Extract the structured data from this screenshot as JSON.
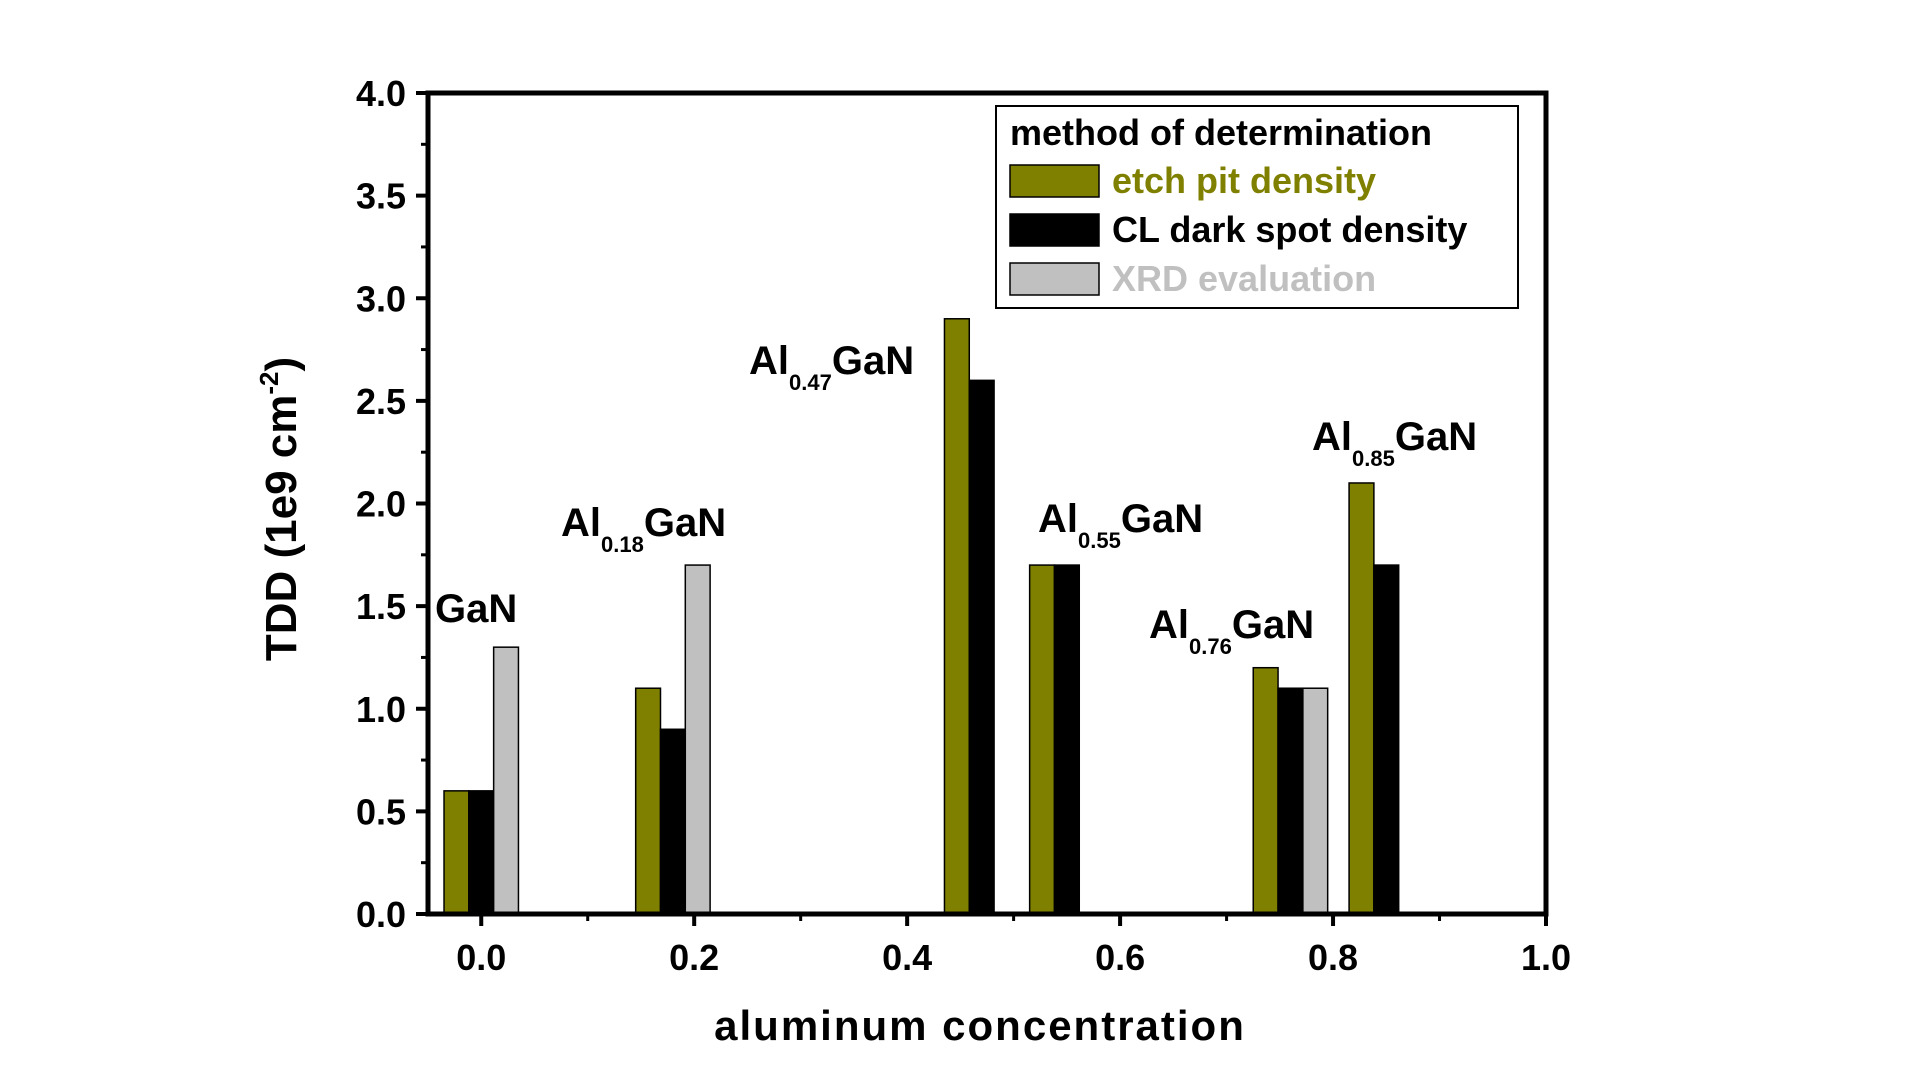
{
  "chart_data": {
    "type": "bar",
    "xlabel": "aluminum concentration",
    "ylabel": "TDD (1e9 cm-2)",
    "ylabel_parts": {
      "main": "TDD (1e9 cm",
      "sup": "-2",
      "end": ")"
    },
    "xlim": [
      -0.05,
      1.0
    ],
    "ylim": [
      0,
      4.0
    ],
    "xticks": [
      "0.0",
      "0.2",
      "0.4",
      "0.6",
      "0.8",
      "1.0"
    ],
    "yticks": [
      "0.0",
      "0.5",
      "1.0",
      "1.5",
      "2.0",
      "2.5",
      "3.0",
      "3.5",
      "4.0"
    ],
    "grid": false,
    "legend": {
      "title": "method of determination",
      "placement": "top-right"
    },
    "series": [
      {
        "name": "etch pit density",
        "color": "#808000",
        "x": [
          0.0,
          0.18,
          0.47,
          0.55,
          0.76,
          0.85
        ],
        "values": [
          0.6,
          1.1,
          2.9,
          1.7,
          1.2,
          2.1
        ]
      },
      {
        "name": "CL dark spot density",
        "color": "#000000",
        "x": [
          0.0,
          0.18,
          0.47,
          0.55,
          0.76,
          0.85
        ],
        "values": [
          0.6,
          0.9,
          2.6,
          1.7,
          1.1,
          1.7
        ]
      },
      {
        "name": "XRD evaluation",
        "color": "#c0c0c0",
        "x": [
          0.0,
          0.18,
          0.76
        ],
        "values": [
          1.3,
          1.7,
          1.1
        ]
      }
    ],
    "annotations": [
      {
        "base": "GaN",
        "sub": "",
        "tail": ""
      },
      {
        "base": "Al",
        "sub": "0.18",
        "tail": "GaN"
      },
      {
        "base": "Al",
        "sub": "0.47",
        "tail": "GaN"
      },
      {
        "base": "Al",
        "sub": "0.55",
        "tail": "GaN"
      },
      {
        "base": "Al",
        "sub": "0.76",
        "tail": "GaN"
      },
      {
        "base": "Al",
        "sub": "0.85",
        "tail": "GaN"
      }
    ]
  }
}
